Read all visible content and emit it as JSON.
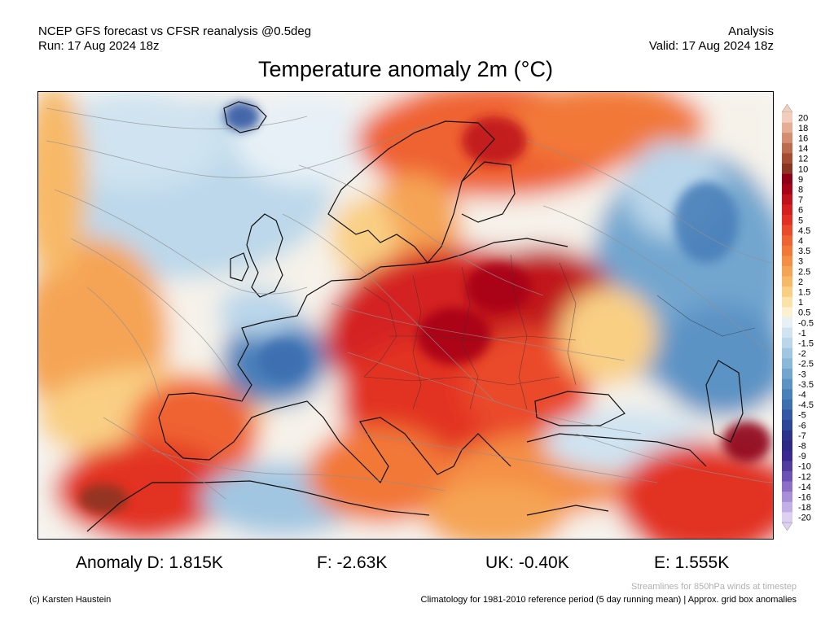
{
  "header": {
    "model_line": "NCEP GFS forecast vs CFSR reanalysis @0.5deg",
    "run_line": "Run: 17 Aug 2024 18z",
    "type_line": "Analysis",
    "valid_line": "Valid: 17 Aug 2024 18z"
  },
  "title": "Temperature anomaly 2m (°C)",
  "colorbar": {
    "labels": [
      "20",
      "18",
      "16",
      "14",
      "12",
      "10",
      "9",
      "8",
      "7",
      "6",
      "5",
      "4.5",
      "4",
      "3.5",
      "3",
      "2.5",
      "2",
      "1.5",
      "1",
      "0.5",
      "-0.5",
      "-1",
      "-1.5",
      "-2",
      "-2.5",
      "-3",
      "-3.5",
      "-4",
      "-4.5",
      "-5",
      "-6",
      "-7",
      "-8",
      "-9",
      "-10",
      "-12",
      "-14",
      "-16",
      "-18",
      "-20"
    ],
    "colors": [
      "#f3cdbb",
      "#e6ad95",
      "#d48d70",
      "#bd6b4e",
      "#a64c33",
      "#8c3422",
      "#8e0016",
      "#a80418",
      "#c0121c",
      "#d42020",
      "#e23024",
      "#ea4a2a",
      "#ef6232",
      "#f27838",
      "#f48e45",
      "#f5a455",
      "#f7b968",
      "#f9cf84",
      "#fbe2a6",
      "#fbf0cf",
      "#e7f0f6",
      "#cfe3f0",
      "#b9d6ea",
      "#a1c6e1",
      "#8ab8d9",
      "#72a6cf",
      "#5c93c5",
      "#4a80ba",
      "#3e6eb0",
      "#3458a3",
      "#2c4799",
      "#2a348c",
      "#2c2a86",
      "#3a2a90",
      "#523c9f",
      "#6d52b5",
      "#8c70c8",
      "#a88fd8",
      "#c4aee6",
      "#ddd0f2"
    ]
  },
  "map": {
    "title": "Europe 2m temperature anomaly field"
  },
  "stats": {
    "d": "Anomaly D: 1.815K",
    "f": "F: -2.63K",
    "uk": "UK: -0.40K",
    "e": "E: 1.555K"
  },
  "footer": {
    "streamlines_note": "Streamlines for 850hPa winds at timestep",
    "climatology_note": "Climatology for 1981-2010 reference period (5 day running mean) | Approx. grid box anomalies",
    "copyright": "(c) Karsten Haustein"
  }
}
